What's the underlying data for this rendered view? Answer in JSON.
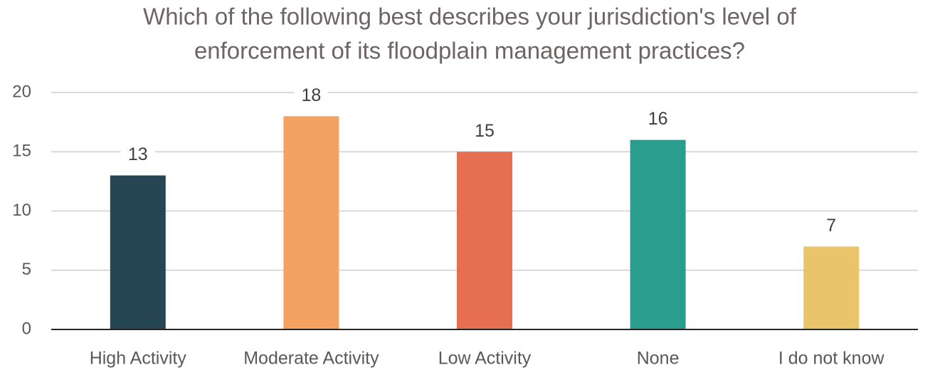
{
  "chart_data": {
    "type": "bar",
    "title": [
      "Which of the following best describes your jurisdiction's level of",
      "enforcement of its floodplain management practices?"
    ],
    "categories": [
      "High Activity",
      "Moderate Activity",
      "Low Activity",
      "None",
      "I do not know"
    ],
    "values": [
      13,
      18,
      15,
      16,
      7
    ],
    "colors": [
      "#264653",
      "#f4a261",
      "#e76f51",
      "#2a9d8f",
      "#e9c46a"
    ],
    "ylim": [
      0,
      20
    ],
    "yticks": [
      0,
      5,
      10,
      15,
      20
    ],
    "grid": true,
    "data_labels": true
  }
}
